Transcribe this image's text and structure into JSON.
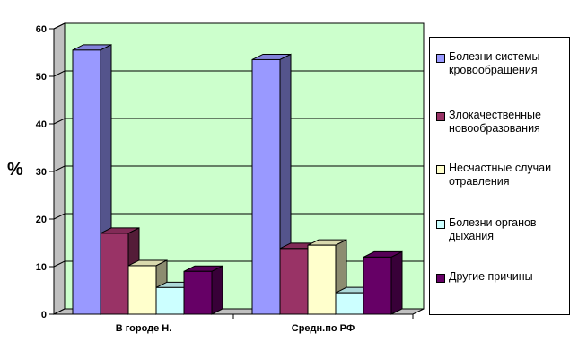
{
  "chart_data": {
    "type": "bar",
    "categories": [
      "В городе Н.",
      "Средн.по РФ"
    ],
    "series": [
      {
        "name": "Болезни системы кровообращения",
        "values": [
          55.5,
          53.5
        ],
        "color": "#9999ff"
      },
      {
        "name": "Злокачественные новообразования",
        "values": [
          17,
          13.8
        ],
        "color": "#993366"
      },
      {
        "name": "Несчастные случаи отравления",
        "values": [
          10.2,
          14.5
        ],
        "color": "#ffffcc"
      },
      {
        "name": "Болезни органов дыхания",
        "values": [
          5.6,
          4.5
        ],
        "color": "#ccffff"
      },
      {
        "name": "Другие причины",
        "values": [
          9,
          12
        ],
        "color": "#660066"
      }
    ],
    "ylabel": "%",
    "ylim": [
      0,
      60
    ],
    "yticks": [
      "0",
      "10",
      "20",
      "30",
      "40",
      "50",
      "60"
    ],
    "grid": true,
    "legend_position": "right",
    "plot_background": "#ccffcc"
  }
}
